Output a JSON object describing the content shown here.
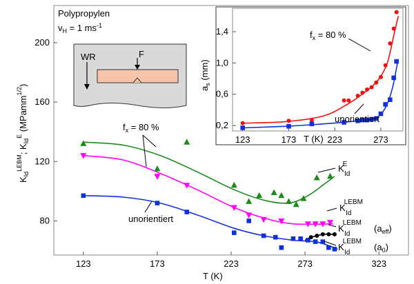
{
  "chart_data": [
    {
      "type": "scatter",
      "title": "Polypropylen",
      "subtitle_main": "v",
      "subtitle_sub": "H",
      "subtitle_tail": " = 1 ms",
      "subtitle_sup": "-1",
      "xlabel": "T (K)",
      "ylabel_parts": [
        {
          "t": "K",
          "k": "n"
        },
        {
          "t": "Id",
          "k": "sub"
        },
        {
          "t": "LEBM",
          "k": "sup"
        },
        {
          "t": "; K",
          "k": "n"
        },
        {
          "t": "Id",
          "k": "sub"
        },
        {
          "t": "E",
          "k": "sup"
        },
        {
          "t": " (MPamm",
          "k": "n"
        },
        {
          "t": "1/2",
          "k": "sup"
        },
        {
          "t": ")",
          "k": "n"
        }
      ],
      "xlim": [
        103,
        343
      ],
      "ylim": [
        57,
        225
      ],
      "xticks": [
        123,
        173,
        223,
        273,
        323
      ],
      "yticks": [
        80,
        120,
        160,
        200
      ],
      "tick_labels_x": [
        "123",
        "173",
        "223",
        "273",
        "323"
      ],
      "tick_labels_y": [
        "80",
        "120",
        "160",
        "200"
      ],
      "series": [
        {
          "name": "K_Id^E (fx = 80 %)",
          "color": "#1a8a1a",
          "marker": "triangle-up",
          "points": [
            [
              123,
              132
            ],
            [
              173,
              115
            ],
            [
              193,
              133
            ],
            [
              225,
              104
            ],
            [
              235,
              93
            ],
            [
              242,
              97
            ],
            [
              252,
              99
            ],
            [
              257,
              97
            ],
            [
              262,
              93
            ],
            [
              267,
              91
            ],
            [
              272,
              95
            ],
            [
              281,
              109
            ],
            [
              290,
              110
            ]
          ],
          "fit": [
            [
              123,
              133
            ],
            [
              150,
              131
            ],
            [
              175,
              124
            ],
            [
              200,
              113
            ],
            [
              225,
              101
            ],
            [
              245,
              94
            ],
            [
              262,
              92
            ],
            [
              275,
              97
            ],
            [
              285,
              104
            ],
            [
              293,
              110
            ]
          ]
        },
        {
          "name": "K_Id^LEBM (fx = 80 %)",
          "color": "#ff00ff",
          "marker": "triangle-down",
          "points": [
            [
              123,
              124
            ],
            [
              173,
              110
            ],
            [
              193,
              104
            ],
            [
              225,
              89
            ],
            [
              235,
              84
            ],
            [
              245,
              81
            ],
            [
              257,
              80
            ],
            [
              275,
              78
            ],
            [
              280,
              78
            ],
            [
              285,
              78
            ],
            [
              290,
              79
            ]
          ],
          "fit": [
            [
              123,
              124
            ],
            [
              150,
              121
            ],
            [
              175,
              112
            ],
            [
              200,
              101
            ],
            [
              225,
              89
            ],
            [
              245,
              82
            ],
            [
              265,
              78
            ],
            [
              292,
              78
            ]
          ]
        },
        {
          "name": "K_Id^LEBM (a0) unorientiert",
          "color": "#1030e0",
          "marker": "square",
          "points": [
            [
              123,
              97
            ],
            [
              173,
              92
            ],
            [
              193,
              86
            ],
            [
              225,
              72
            ],
            [
              235,
              80
            ],
            [
              245,
              70
            ],
            [
              253,
              69
            ],
            [
              257,
              62
            ],
            [
              265,
              68
            ],
            [
              270,
              68
            ],
            [
              275,
              67
            ],
            [
              280,
              66
            ],
            [
              285,
              66
            ],
            [
              289,
              62
            ],
            [
              293,
              61
            ]
          ],
          "fit": [
            [
              123,
              97
            ],
            [
              150,
              96
            ],
            [
              175,
              92
            ],
            [
              200,
              84
            ],
            [
              225,
              75
            ],
            [
              245,
              70
            ],
            [
              265,
              67
            ],
            [
              280,
              66
            ],
            [
              290,
              63
            ],
            [
              295,
              61
            ]
          ]
        },
        {
          "name": "K_Id^LEBM (aeff) unorientiert",
          "color": "#000000",
          "marker": "circle",
          "points": [
            [
              277,
              69
            ],
            [
              281,
              70
            ],
            [
              285,
              71
            ],
            [
              289,
              71
            ],
            [
              293,
              71
            ]
          ],
          "fit": [
            [
              273,
              67
            ],
            [
              277,
              69
            ],
            [
              281,
              70
            ],
            [
              285,
              71
            ],
            [
              289,
              71
            ],
            [
              293,
              71
            ]
          ]
        }
      ],
      "annotations": {
        "fx_label": "f",
        "fx_sub": "x",
        "fx_tail": " = 80 %",
        "unorientiert": "unorientiert",
        "k_main": "K",
        "k_sub": "Id",
        "green_label_sup": "E",
        "magenta_label_sup": "LEBM",
        "black_label_sup": "LEBM",
        "black_label_tail": "(a",
        "black_label_tail_sub": "eff",
        "black_label_close": ")",
        "blue_label_sup": "LEBM",
        "blue_label_tail": "(a",
        "blue_label_tail_sub": "0",
        "blue_label_close": ")"
      },
      "schematic": {
        "wr": "WR",
        "f": "F"
      }
    },
    {
      "type": "scatter",
      "inset": true,
      "xlabel": "T (K)",
      "ylabel_parts": [
        {
          "t": "a",
          "k": "n"
        },
        {
          "t": "s",
          "k": "sub"
        },
        {
          "t": " (mm)",
          "k": "n"
        }
      ],
      "xlim": [
        112,
        297
      ],
      "ylim": [
        0.13,
        1.7
      ],
      "xticks": [
        123,
        173,
        223,
        273
      ],
      "yticks": [
        0.2,
        0.6,
        1.0,
        1.4
      ],
      "tick_labels_x": [
        "123",
        "173",
        "223",
        "273"
      ],
      "tick_labels_y": [
        "0,2",
        "0,6",
        "1,0",
        "1,4"
      ],
      "series": [
        {
          "name": "fx = 80 %",
          "color": "#ee1111",
          "marker": "circle",
          "points": [
            [
              123,
              0.23
            ],
            [
              173,
              0.26
            ],
            [
              198,
              0.27
            ],
            [
              233,
              0.52
            ],
            [
              238,
              0.52
            ],
            [
              248,
              0.58
            ],
            [
              253,
              0.62
            ],
            [
              258,
              0.66
            ],
            [
              263,
              0.69
            ],
            [
              268,
              0.75
            ],
            [
              273,
              0.82
            ],
            [
              278,
              0.97
            ],
            [
              283,
              1.25
            ],
            [
              287,
              1.44
            ],
            [
              290,
              1.65
            ]
          ],
          "fit": [
            [
              123,
              0.23
            ],
            [
              170,
              0.25
            ],
            [
              210,
              0.32
            ],
            [
              235,
              0.46
            ],
            [
              255,
              0.62
            ],
            [
              270,
              0.78
            ],
            [
              280,
              1.0
            ],
            [
              287,
              1.35
            ],
            [
              292,
              1.6
            ]
          ]
        },
        {
          "name": "unorientiert",
          "color": "#1030e0",
          "marker": "square",
          "points": [
            [
              123,
              0.17
            ],
            [
              173,
              0.19
            ],
            [
              198,
              0.22
            ],
            [
              233,
              0.24
            ],
            [
              248,
              0.26
            ],
            [
              253,
              0.27
            ],
            [
              258,
              0.27
            ],
            [
              263,
              0.28
            ],
            [
              268,
              0.29
            ],
            [
              273,
              0.35
            ],
            [
              278,
              0.47
            ],
            [
              283,
              0.53
            ],
            [
              287,
              0.81
            ],
            [
              290,
              1.02
            ]
          ],
          "fit": [
            [
              123,
              0.17
            ],
            [
              170,
              0.19
            ],
            [
              210,
              0.22
            ],
            [
              240,
              0.25
            ],
            [
              260,
              0.28
            ],
            [
              272,
              0.33
            ],
            [
              280,
              0.48
            ],
            [
              286,
              0.7
            ],
            [
              291,
              1.0
            ]
          ]
        }
      ],
      "annotations": {
        "fx_label": "f",
        "fx_sub": "x",
        "fx_tail": " = 80 %",
        "unorientiert": "unorientiert"
      }
    }
  ]
}
